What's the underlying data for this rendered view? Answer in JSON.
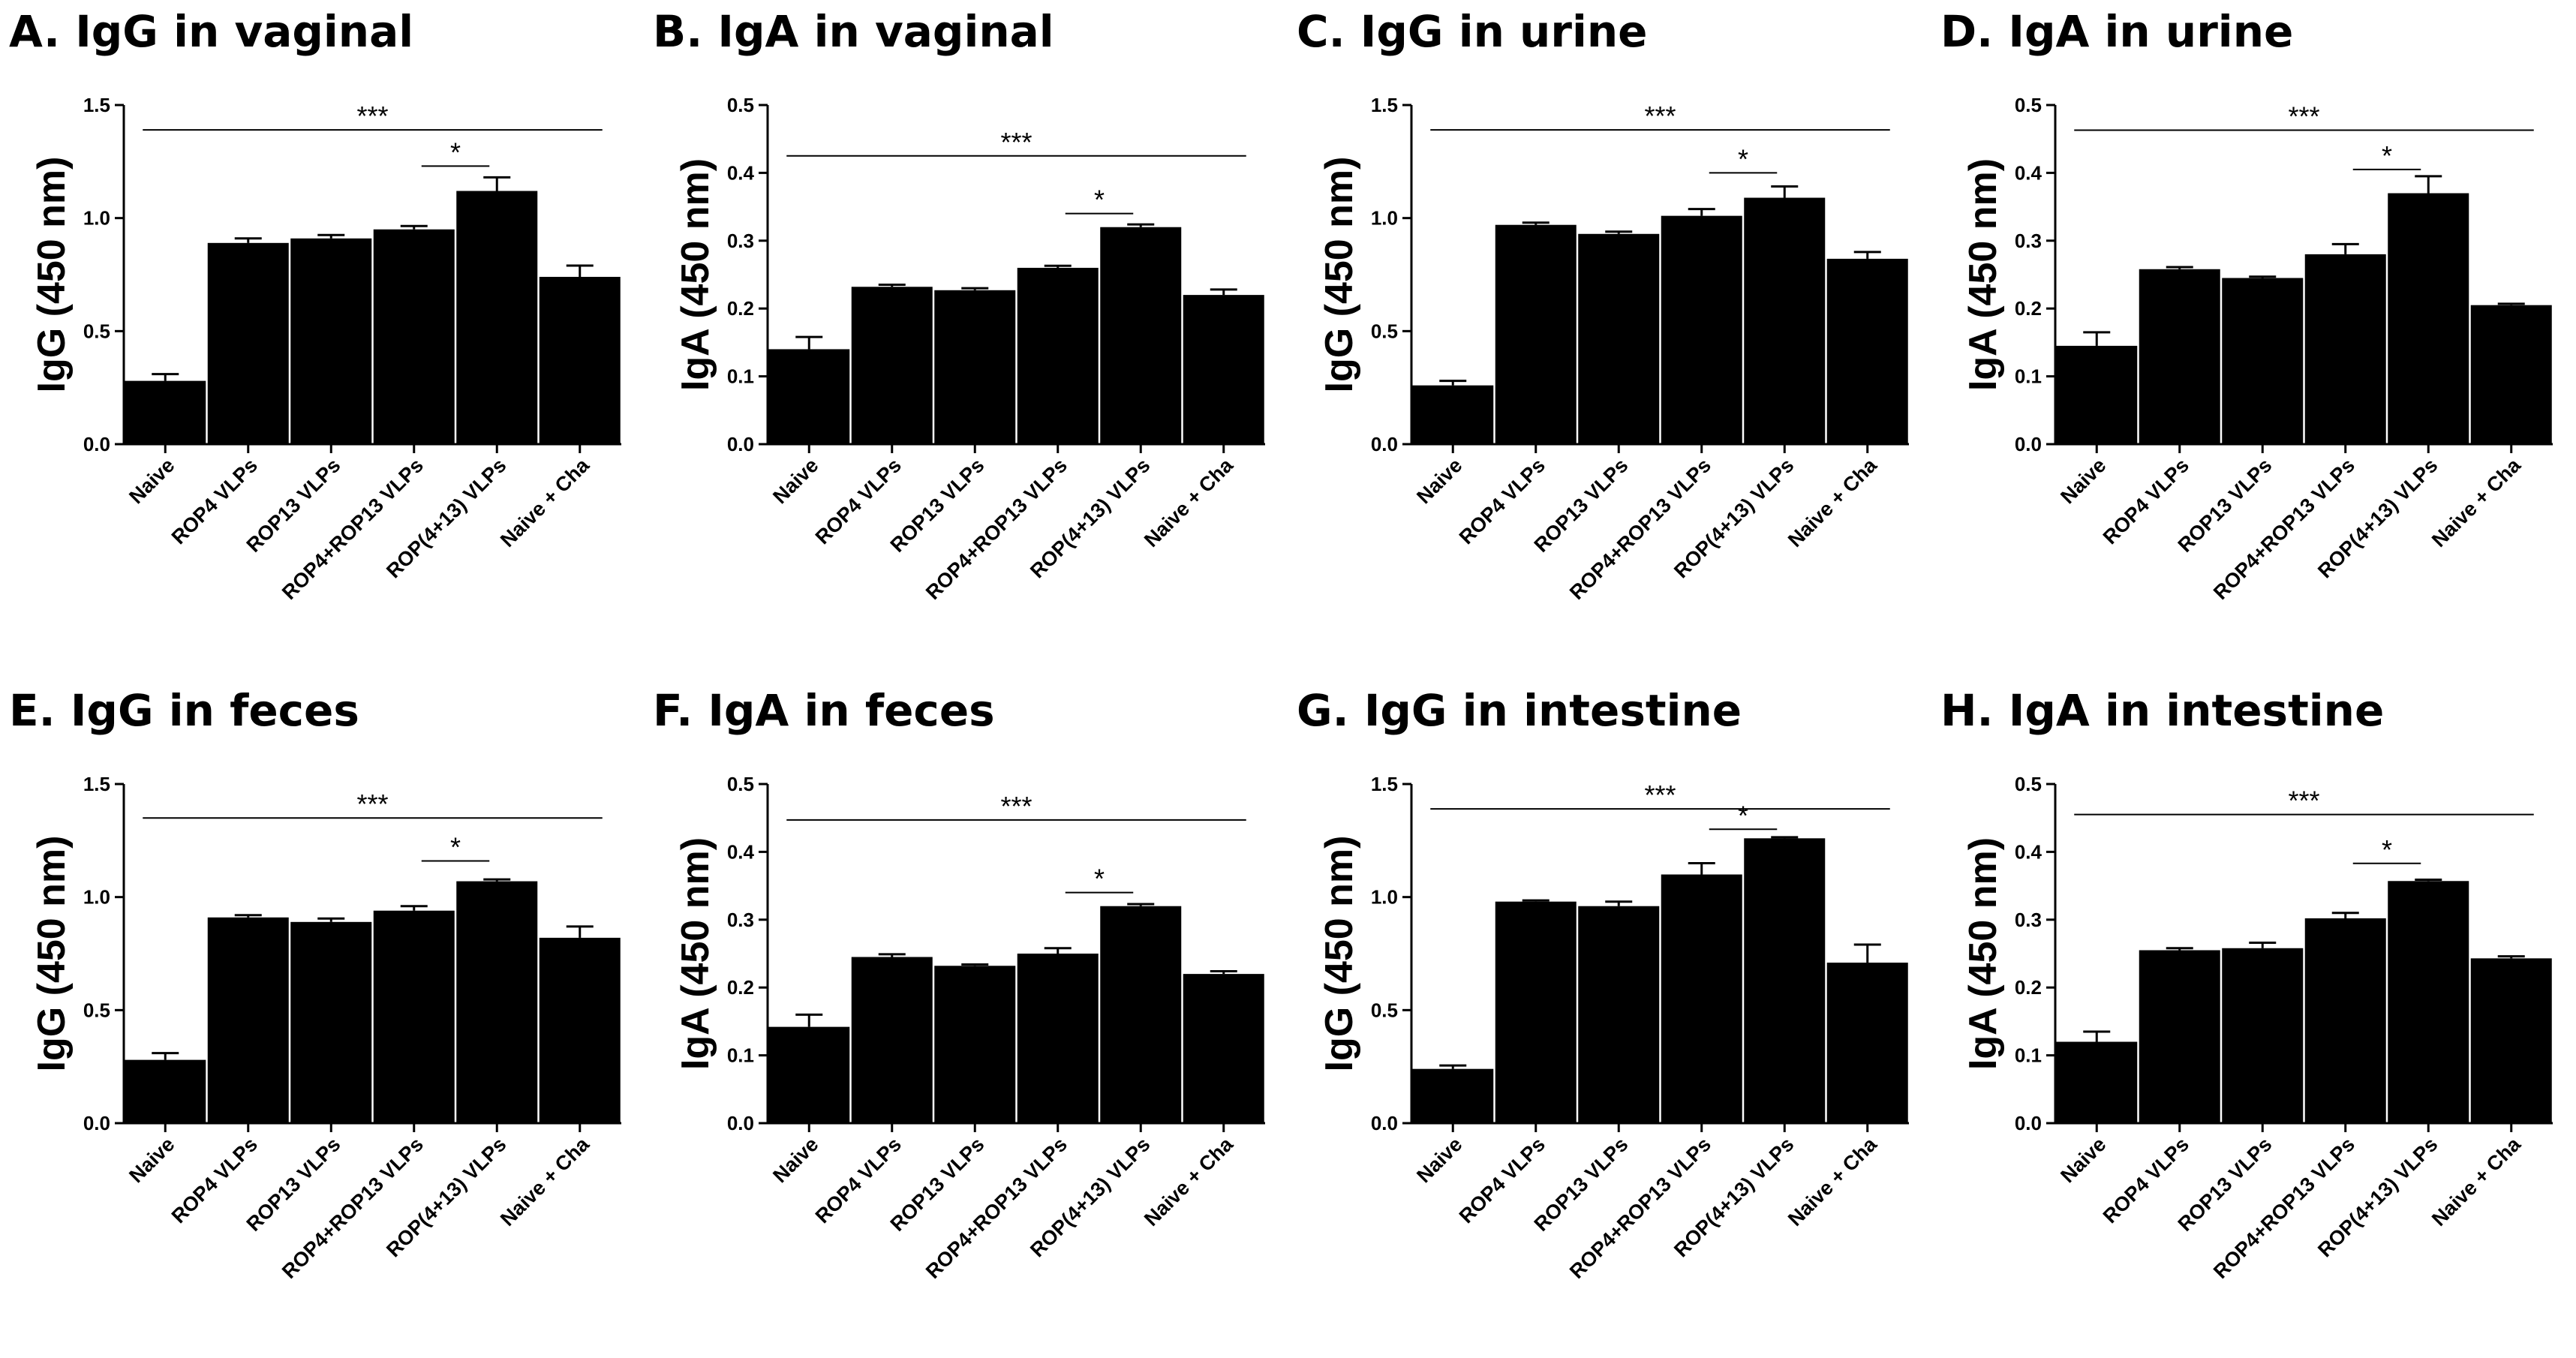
{
  "chart_data": [
    {
      "type": "bar",
      "title": "A. IgG in vaginal",
      "ylabel": "IgG (450 nm)",
      "ylim": [
        0,
        1.5
      ],
      "yticks": [
        "0.0",
        "0.5",
        "1.0",
        "1.5"
      ],
      "categories": [
        "Naive",
        "ROP4 VLPs",
        "ROP13 VLPs",
        "ROP4+ROP13 VLPs",
        "ROP(4+13) VLPs",
        "Naive + Cha"
      ],
      "values": [
        0.28,
        0.89,
        0.91,
        0.95,
        1.12,
        0.74
      ],
      "errors": [
        0.03,
        0.02,
        0.015,
        0.015,
        0.06,
        0.05
      ],
      "significance": [
        {
          "from": 0,
          "to": 5,
          "label": "***",
          "level": 1.39
        },
        {
          "from": 3,
          "to": 4,
          "label": "*",
          "level": 1.23
        }
      ]
    },
    {
      "type": "bar",
      "title": "B. IgA in vaginal",
      "ylabel": "IgA (450 nm)",
      "ylim": [
        0,
        0.5
      ],
      "yticks": [
        "0.0",
        "0.1",
        "0.2",
        "0.3",
        "0.4",
        "0.5"
      ],
      "categories": [
        "Naive",
        "ROP4 VLPs",
        "ROP13 VLPs",
        "ROP4+ROP13 VLPs",
        "ROP(4+13) VLPs",
        "Naive + Cha"
      ],
      "values": [
        0.14,
        0.232,
        0.227,
        0.26,
        0.32,
        0.22
      ],
      "errors": [
        0.018,
        0.003,
        0.003,
        0.003,
        0.004,
        0.008
      ],
      "significance": [
        {
          "from": 0,
          "to": 5,
          "label": "***",
          "level": 0.425
        },
        {
          "from": 3,
          "to": 4,
          "label": "*",
          "level": 0.34
        }
      ]
    },
    {
      "type": "bar",
      "title": "C. IgG in urine",
      "ylabel": "IgG (450 nm)",
      "ylim": [
        0,
        1.5
      ],
      "yticks": [
        "0.0",
        "0.5",
        "1.0",
        "1.5"
      ],
      "categories": [
        "Naive",
        "ROP4 VLPs",
        "ROP13 VLPs",
        "ROP4+ROP13 VLPs",
        "ROP(4+13) VLPs",
        "Naive + Cha"
      ],
      "values": [
        0.26,
        0.97,
        0.93,
        1.01,
        1.09,
        0.82
      ],
      "errors": [
        0.02,
        0.01,
        0.01,
        0.03,
        0.05,
        0.03
      ],
      "significance": [
        {
          "from": 0,
          "to": 5,
          "label": "***",
          "level": 1.39
        },
        {
          "from": 3,
          "to": 4,
          "label": "*",
          "level": 1.2
        }
      ]
    },
    {
      "type": "bar",
      "title": "D. IgA in urine",
      "ylabel": "IgA (450 nm)",
      "ylim": [
        0,
        0.5
      ],
      "yticks": [
        "0.0",
        "0.1",
        "0.2",
        "0.3",
        "0.4",
        "0.5"
      ],
      "categories": [
        "Naive",
        "ROP4 VLPs",
        "ROP13 VLPs",
        "ROP4+ROP13 VLPs",
        "ROP(4+13) VLPs",
        "Naive + Cha"
      ],
      "values": [
        0.145,
        0.258,
        0.245,
        0.28,
        0.37,
        0.205
      ],
      "errors": [
        0.02,
        0.003,
        0.002,
        0.015,
        0.025,
        0.002
      ],
      "significance": [
        {
          "from": 0,
          "to": 5,
          "label": "***",
          "level": 0.463
        },
        {
          "from": 3,
          "to": 4,
          "label": "*",
          "level": 0.405
        }
      ]
    },
    {
      "type": "bar",
      "title": "E. IgG in feces",
      "ylabel": "IgG (450 nm)",
      "ylim": [
        0,
        1.5
      ],
      "yticks": [
        "0.0",
        "0.5",
        "1.0",
        "1.5"
      ],
      "categories": [
        "Naive",
        "ROP4 VLPs",
        "ROP13 VLPs",
        "ROP4+ROP13 VLPs",
        "ROP(4+13) VLPs",
        "Naive + Cha"
      ],
      "values": [
        0.28,
        0.91,
        0.89,
        0.94,
        1.07,
        0.82
      ],
      "errors": [
        0.03,
        0.01,
        0.015,
        0.02,
        0.008,
        0.05
      ],
      "significance": [
        {
          "from": 0,
          "to": 5,
          "label": "***",
          "level": 1.35
        },
        {
          "from": 3,
          "to": 4,
          "label": "*",
          "level": 1.16
        }
      ]
    },
    {
      "type": "bar",
      "title": "F. IgA in feces",
      "ylabel": "IgA (450 nm)",
      "ylim": [
        0,
        0.5
      ],
      "yticks": [
        "0.0",
        "0.1",
        "0.2",
        "0.3",
        "0.4",
        "0.5"
      ],
      "categories": [
        "Naive",
        "ROP4 VLPs",
        "ROP13 VLPs",
        "ROP4+ROP13 VLPs",
        "ROP(4+13) VLPs",
        "Naive + Cha"
      ],
      "values": [
        0.142,
        0.245,
        0.232,
        0.25,
        0.32,
        0.22
      ],
      "errors": [
        0.018,
        0.004,
        0.002,
        0.008,
        0.003,
        0.004
      ],
      "significance": [
        {
          "from": 0,
          "to": 5,
          "label": "***",
          "level": 0.447
        },
        {
          "from": 3,
          "to": 4,
          "label": "*",
          "level": 0.34
        }
      ]
    },
    {
      "type": "bar",
      "title": "G. IgG in intestine",
      "ylabel": "IgG (450 nm)",
      "ylim": [
        0,
        1.5
      ],
      "yticks": [
        "0.0",
        "0.5",
        "1.0",
        "1.5"
      ],
      "categories": [
        "Naive",
        "ROP4 VLPs",
        "ROP13 VLPs",
        "ROP4+ROP13 VLPs",
        "ROP(4+13) VLPs",
        "Naive + Cha"
      ],
      "values": [
        0.24,
        0.98,
        0.96,
        1.1,
        1.26,
        0.71
      ],
      "errors": [
        0.015,
        0.005,
        0.02,
        0.05,
        0.005,
        0.08
      ],
      "significance": [
        {
          "from": 0,
          "to": 5,
          "label": "***",
          "level": 1.39
        },
        {
          "from": 3,
          "to": 4,
          "label": "*",
          "level": 1.3
        }
      ]
    },
    {
      "type": "bar",
      "title": "H. IgA in intestine",
      "ylabel": "IgA (450 nm)",
      "ylim": [
        0,
        0.5
      ],
      "yticks": [
        "0.0",
        "0.1",
        "0.2",
        "0.3",
        "0.4",
        "0.5"
      ],
      "categories": [
        "Naive",
        "ROP4 VLPs",
        "ROP13 VLPs",
        "ROP4+ROP13 VLPs",
        "ROP(4+13) VLPs",
        "Naive + Cha"
      ],
      "values": [
        0.12,
        0.255,
        0.258,
        0.302,
        0.357,
        0.243
      ],
      "errors": [
        0.015,
        0.003,
        0.008,
        0.008,
        0.002,
        0.003
      ],
      "significance": [
        {
          "from": 0,
          "to": 5,
          "label": "***",
          "level": 0.455
        },
        {
          "from": 3,
          "to": 4,
          "label": "*",
          "level": 0.383
        }
      ]
    }
  ]
}
